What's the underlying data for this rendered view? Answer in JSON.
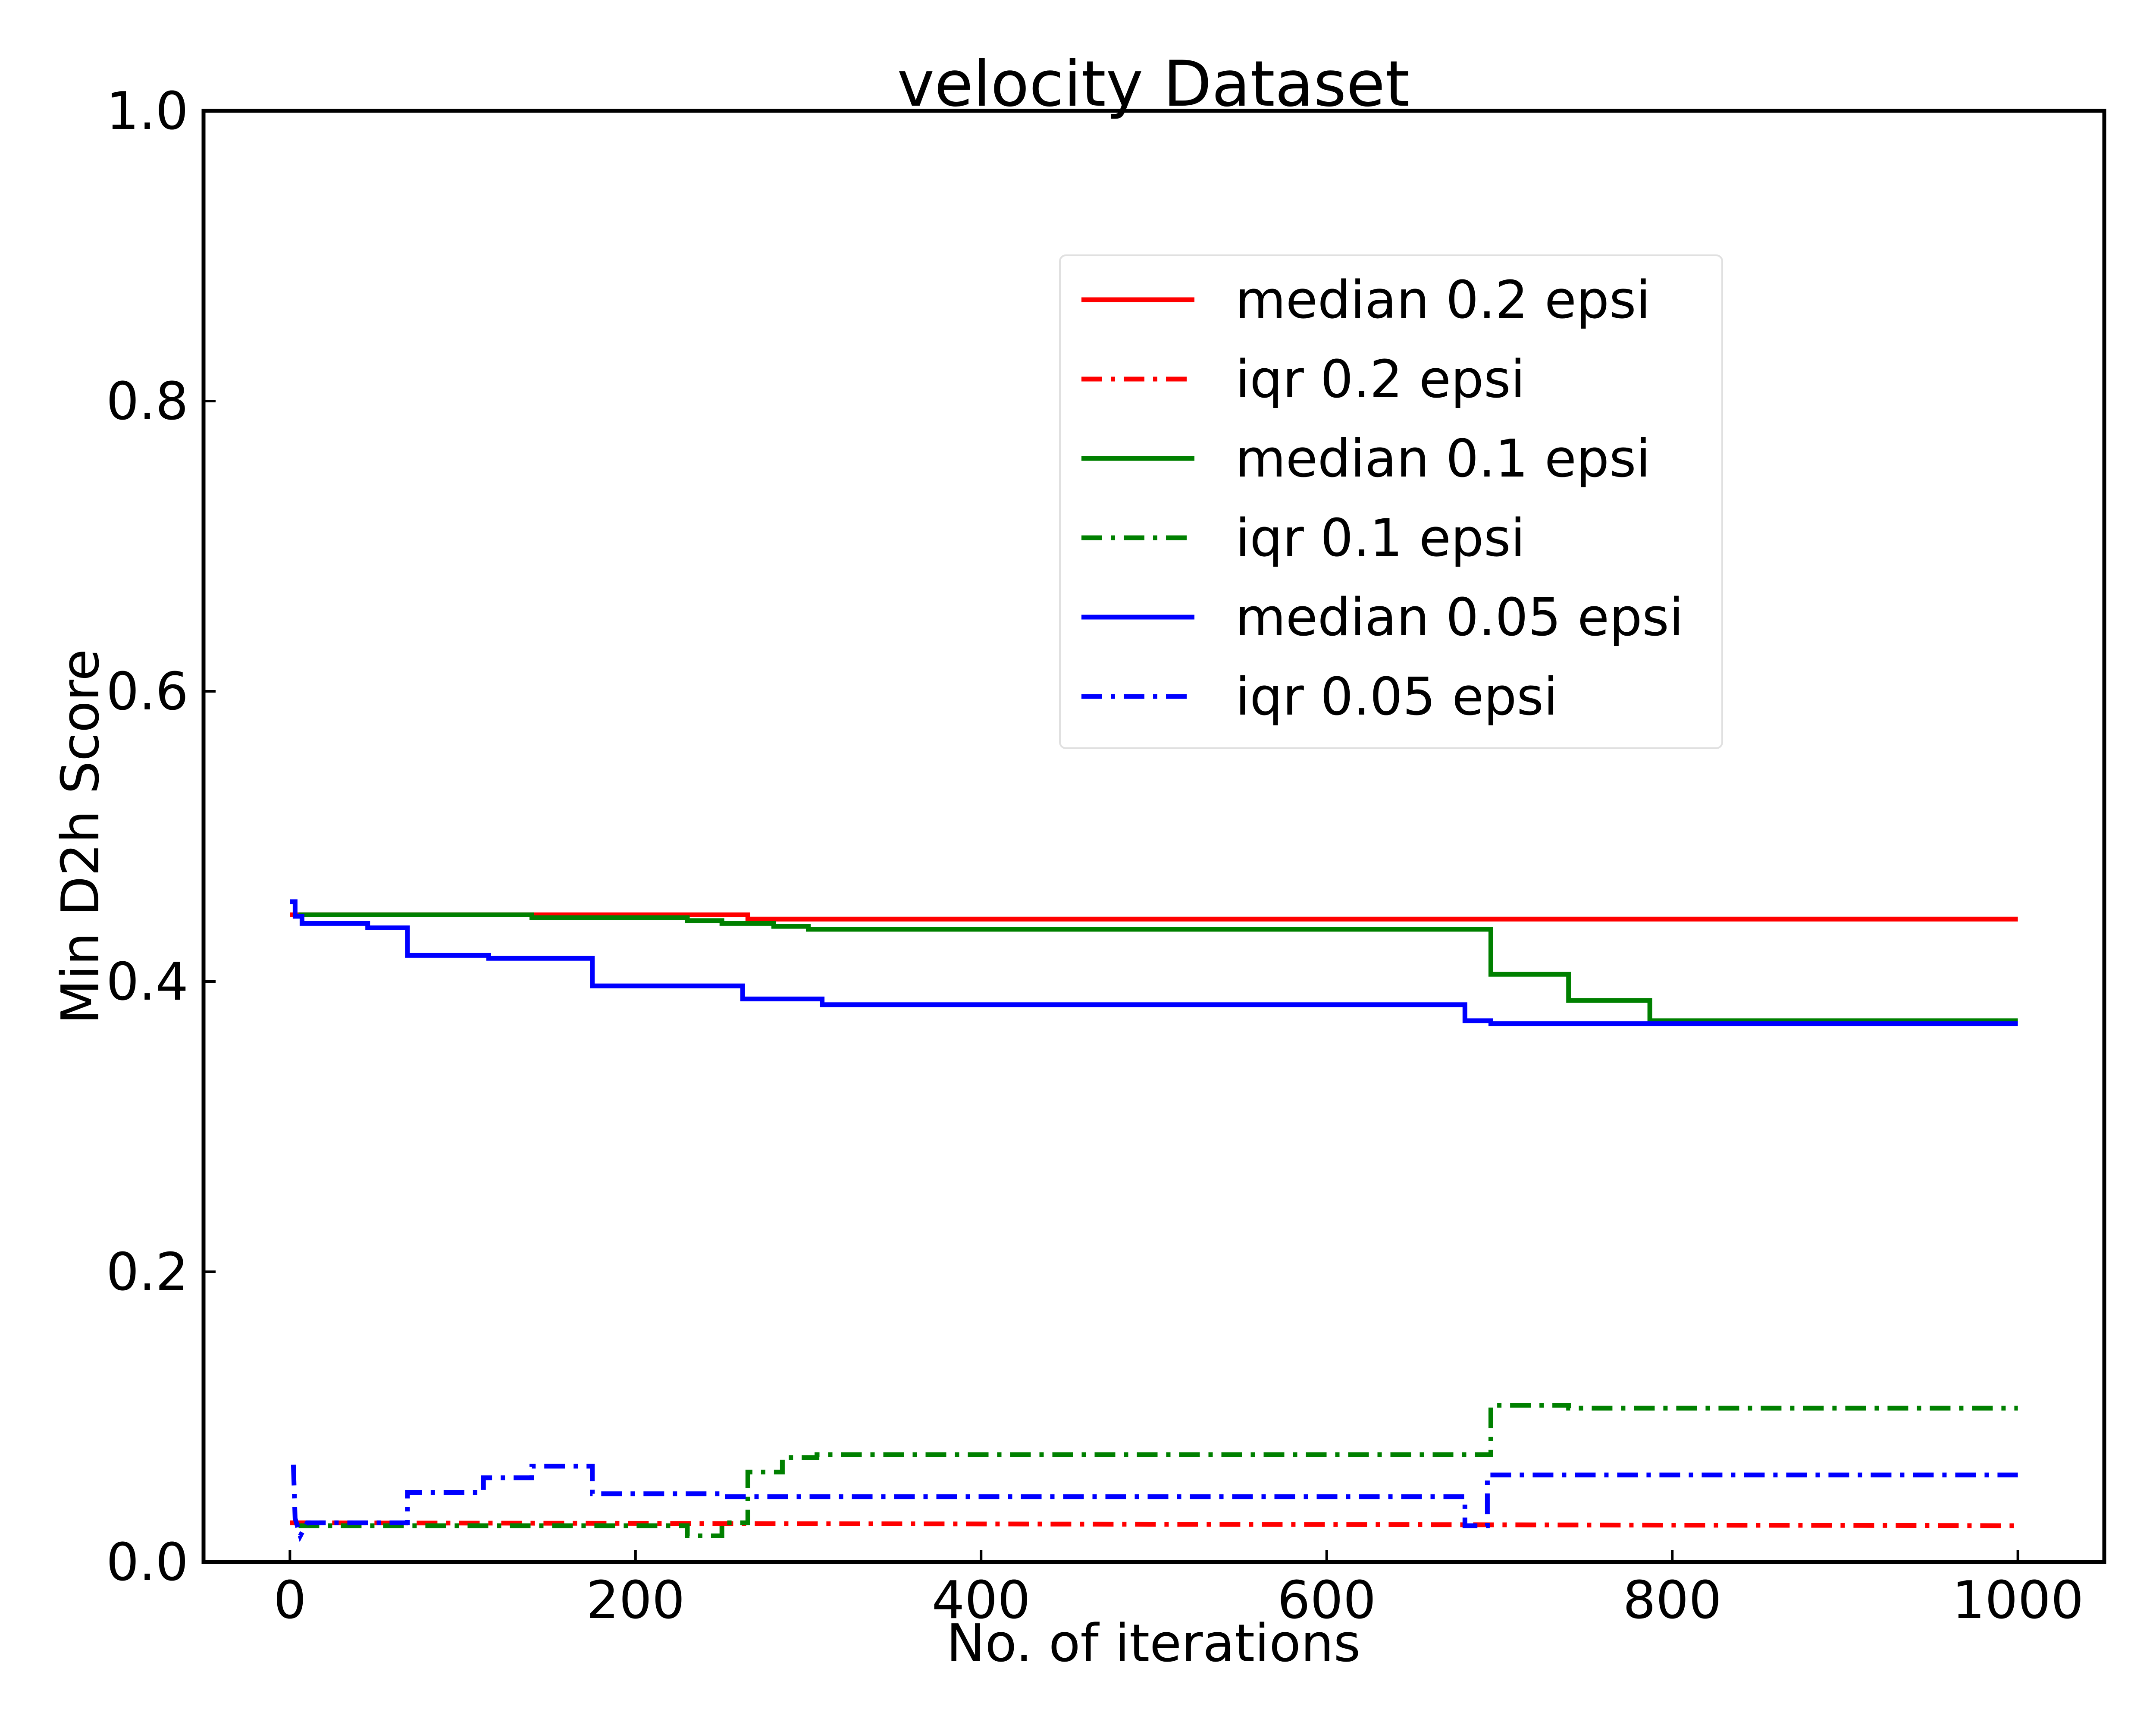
{
  "chart_data": {
    "type": "line",
    "title": "velocity Dataset",
    "xlabel": "No. of iterations",
    "ylabel": "Min D2h Score",
    "xlim": [
      -50,
      1050
    ],
    "ylim": [
      0,
      1.0
    ],
    "x_ticks": [
      "0",
      "200",
      "400",
      "600",
      "800",
      "1000"
    ],
    "x_tick_values": [
      0,
      200,
      400,
      600,
      800,
      1000
    ],
    "y_ticks": [
      "0.0",
      "0.2",
      "0.4",
      "0.6",
      "0.8",
      "1.0"
    ],
    "y_tick_values": [
      0,
      0.2,
      0.4,
      0.6,
      0.8,
      1.0
    ],
    "grid": false,
    "legend_position": "upper-right",
    "series": [
      {
        "name": "median 0.2 epsi",
        "color": "#ff0000",
        "style": "solid",
        "points": [
          [
            0,
            0.446
          ],
          [
            265,
            0.446
          ],
          [
            265,
            0.443
          ],
          [
            1000,
            0.443
          ]
        ]
      },
      {
        "name": "iqr 0.2 epsi",
        "color": "#ff0000",
        "style": "dashdot",
        "points": [
          [
            0,
            0.027
          ],
          [
            1000,
            0.025
          ]
        ]
      },
      {
        "name": "median 0.1 epsi",
        "color": "#008000",
        "style": "solid",
        "points": [
          [
            5,
            0.446
          ],
          [
            140,
            0.446
          ],
          [
            140,
            0.444
          ],
          [
            230,
            0.444
          ],
          [
            230,
            0.442
          ],
          [
            250,
            0.442
          ],
          [
            250,
            0.44
          ],
          [
            280,
            0.44
          ],
          [
            280,
            0.438
          ],
          [
            300,
            0.438
          ],
          [
            300,
            0.436
          ],
          [
            695,
            0.436
          ],
          [
            695,
            0.405
          ],
          [
            740,
            0.405
          ],
          [
            740,
            0.387
          ],
          [
            787,
            0.387
          ],
          [
            787,
            0.373
          ],
          [
            1000,
            0.373
          ]
        ]
      },
      {
        "name": "iqr 0.1 epsi",
        "color": "#008000",
        "style": "dashdot",
        "points": [
          [
            5,
            0.025
          ],
          [
            230,
            0.025
          ],
          [
            230,
            0.018
          ],
          [
            250,
            0.018
          ],
          [
            250,
            0.027
          ],
          [
            265,
            0.027
          ],
          [
            265,
            0.062
          ],
          [
            285,
            0.062
          ],
          [
            285,
            0.072
          ],
          [
            305,
            0.072
          ],
          [
            305,
            0.074
          ],
          [
            695,
            0.074
          ],
          [
            695,
            0.108
          ],
          [
            740,
            0.108
          ],
          [
            740,
            0.106
          ],
          [
            1000,
            0.106
          ]
        ]
      },
      {
        "name": "median 0.05 epsi",
        "color": "#0000ff",
        "style": "solid",
        "points": [
          [
            0,
            0.455
          ],
          [
            3,
            0.455
          ],
          [
            3,
            0.445
          ],
          [
            7,
            0.445
          ],
          [
            7,
            0.44
          ],
          [
            45,
            0.44
          ],
          [
            45,
            0.437
          ],
          [
            68,
            0.437
          ],
          [
            68,
            0.418
          ],
          [
            115,
            0.418
          ],
          [
            115,
            0.416
          ],
          [
            175,
            0.416
          ],
          [
            175,
            0.397
          ],
          [
            262,
            0.397
          ],
          [
            262,
            0.388
          ],
          [
            308,
            0.388
          ],
          [
            308,
            0.384
          ],
          [
            680,
            0.384
          ],
          [
            680,
            0.373
          ],
          [
            695,
            0.373
          ],
          [
            695,
            0.371
          ],
          [
            1000,
            0.371
          ]
        ]
      },
      {
        "name": "iqr 0.05 epsi",
        "color": "#0000ff",
        "style": "dashdot",
        "points": [
          [
            2,
            0.067
          ],
          [
            3,
            0.03
          ],
          [
            6,
            0.018
          ],
          [
            10,
            0.027
          ],
          [
            68,
            0.027
          ],
          [
            68,
            0.048
          ],
          [
            112,
            0.048
          ],
          [
            112,
            0.058
          ],
          [
            140,
            0.058
          ],
          [
            140,
            0.066
          ],
          [
            175,
            0.066
          ],
          [
            175,
            0.047
          ],
          [
            250,
            0.047
          ],
          [
            250,
            0.045
          ],
          [
            680,
            0.045
          ],
          [
            680,
            0.025
          ],
          [
            693,
            0.025
          ],
          [
            693,
            0.06
          ],
          [
            1000,
            0.06
          ]
        ]
      }
    ]
  }
}
